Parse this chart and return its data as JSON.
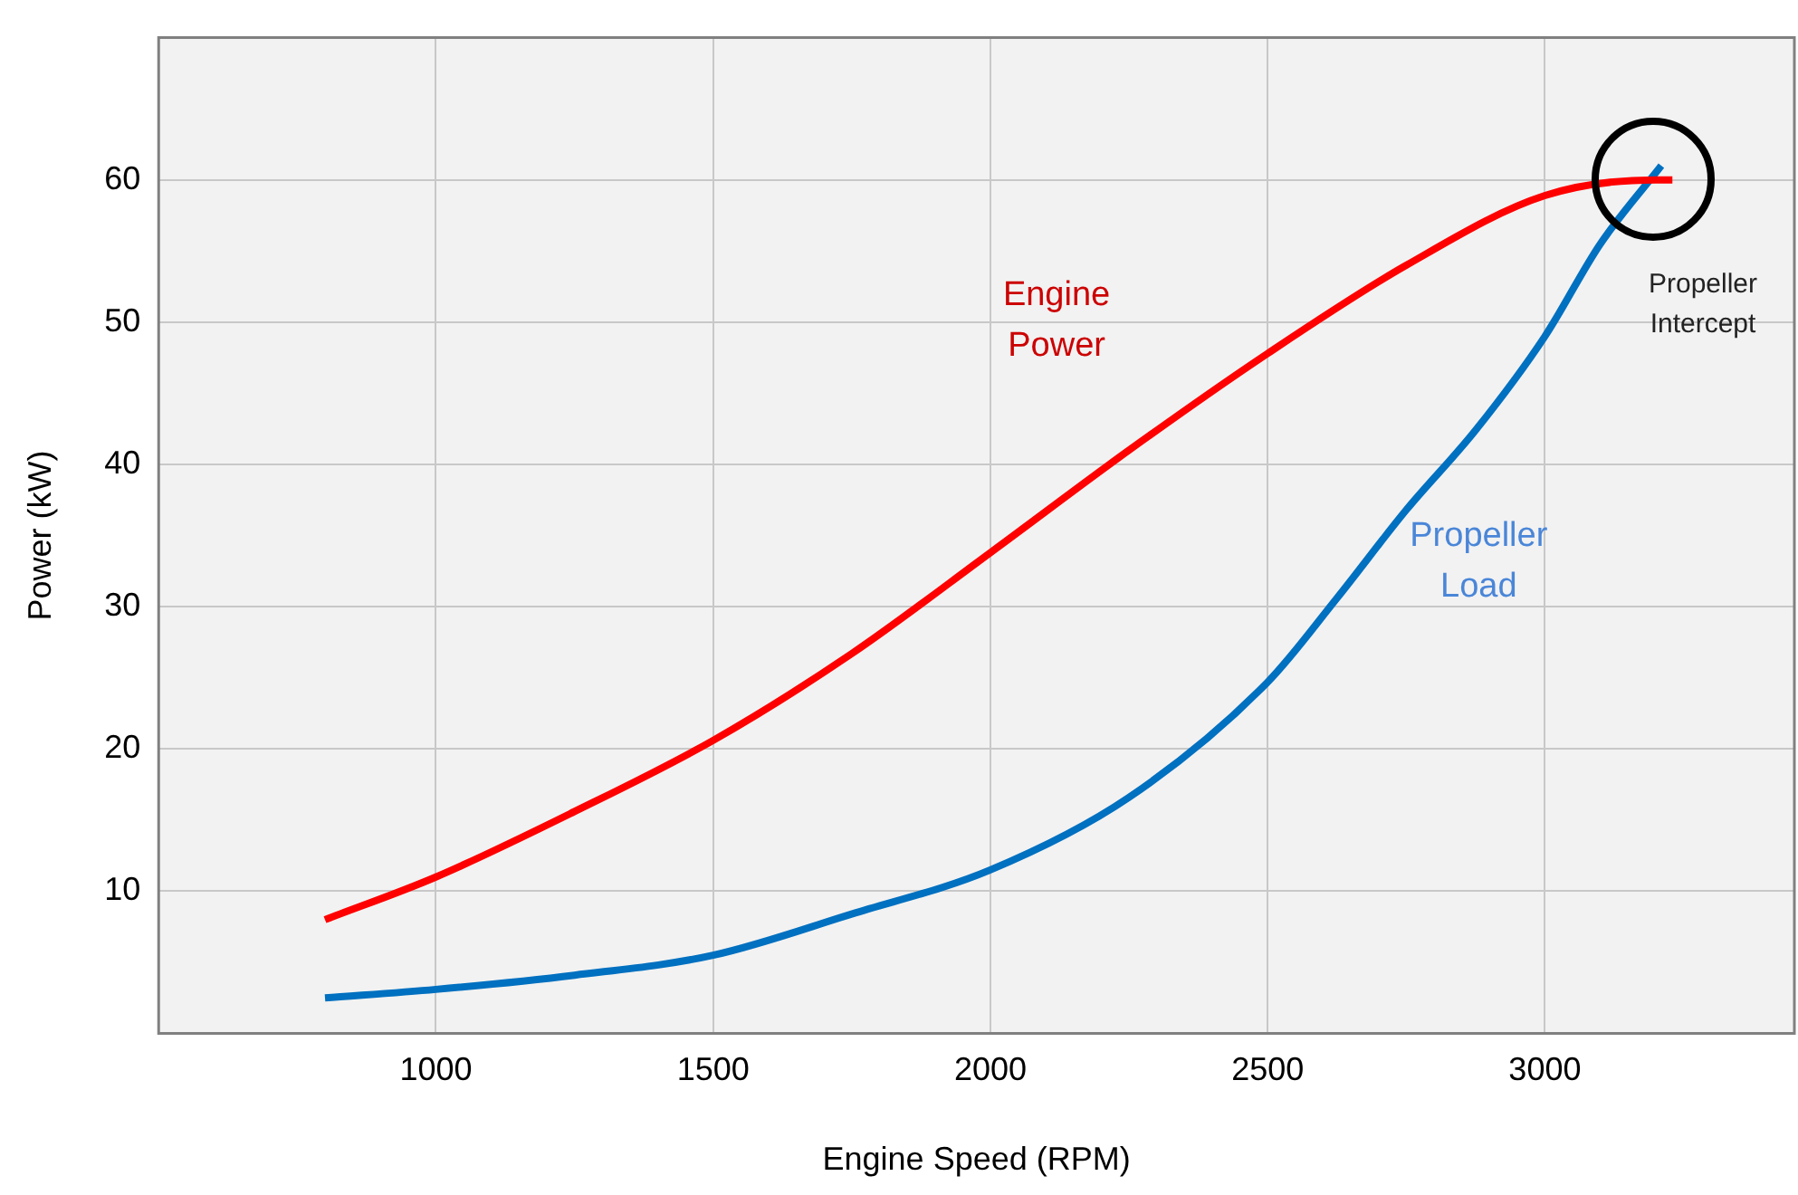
{
  "chart_data": {
    "type": "line",
    "xlabel": "Engine Speed (RPM)",
    "ylabel": "Power (kW)",
    "xlim": [
      500,
      3450
    ],
    "xticks": [
      1000,
      1500,
      2000,
      2500,
      3000
    ],
    "ylim": [
      0,
      70
    ],
    "yticks": [
      10,
      20,
      30,
      40,
      50,
      60
    ],
    "grid": true,
    "legend": false,
    "marker": "none",
    "line_style": "solid",
    "series": [
      {
        "name": "Engine Power",
        "color": "#ff0000",
        "x": [
          800,
          1000,
          1250,
          1500,
          1750,
          2000,
          2250,
          2500,
          2750,
          3000,
          3200,
          3230
        ],
        "values": [
          8,
          11,
          15.6,
          20.6,
          26.7,
          33.8,
          41,
          47.8,
          54,
          58.9,
          60,
          60
        ]
      },
      {
        "name": "Propeller Load",
        "color": "#0070c0",
        "x": [
          800,
          1000,
          1250,
          1500,
          1750,
          2000,
          2250,
          2500,
          2625,
          2750,
          2875,
          3000,
          3100,
          3210
        ],
        "values": [
          2.5,
          3.1,
          4.1,
          5.5,
          8.4,
          11.5,
          16.6,
          24.7,
          30.6,
          36.8,
          42.4,
          49,
          55.5,
          61
        ]
      }
    ],
    "annotations": [
      "Propeller Intercept"
    ]
  }
}
